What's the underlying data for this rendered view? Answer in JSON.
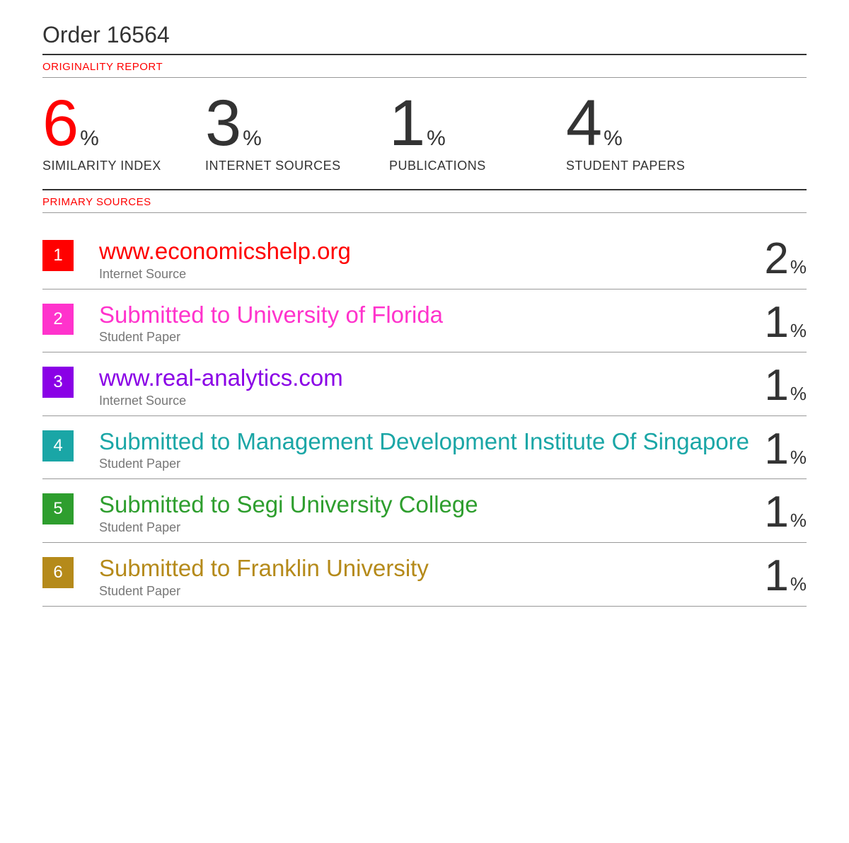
{
  "title": "Order 16564",
  "section_labels": {
    "originality": "ORIGINALITY REPORT",
    "primary_sources": "PRIMARY SOURCES"
  },
  "metrics": [
    {
      "value": "6",
      "unit": "%",
      "label": "SIMILARITY INDEX",
      "highlight": true
    },
    {
      "value": "3",
      "unit": "%",
      "label": "INTERNET SOURCES",
      "highlight": false
    },
    {
      "value": "1",
      "unit": "%",
      "label": "PUBLICATIONS",
      "highlight": false
    },
    {
      "value": "4",
      "unit": "%",
      "label": "STUDENT PAPERS",
      "highlight": false
    }
  ],
  "colors": {
    "accent_red": "#ff0000",
    "text_dark": "#333333",
    "text_muted": "#777777",
    "divider_light": "#999999"
  },
  "sources": [
    {
      "num": "1",
      "title": "www.economicshelp.org",
      "sub": "Internet Source",
      "pct": "2",
      "color": "#ff0000",
      "title_color": "#ff0000"
    },
    {
      "num": "2",
      "title": "Submitted to University of Florida",
      "sub": "Student Paper",
      "pct": "1",
      "color": "#ff33cc",
      "title_color": "#ff33cc"
    },
    {
      "num": "3",
      "title": "www.real-analytics.com",
      "sub": "Internet Source",
      "pct": "1",
      "color": "#8a00e6",
      "title_color": "#8a00e6"
    },
    {
      "num": "4",
      "title": "Submitted to Management Development Institute Of Singapore",
      "sub": "Student Paper",
      "pct": "1",
      "color": "#1aa6a6",
      "title_color": "#1aa6a6"
    },
    {
      "num": "5",
      "title": "Submitted to Segi University College",
      "sub": "Student Paper",
      "pct": "1",
      "color": "#2e9e2e",
      "title_color": "#2e9e2e"
    },
    {
      "num": "6",
      "title": "Submitted to Franklin University",
      "sub": "Student Paper",
      "pct": "1",
      "color": "#b58a1a",
      "title_color": "#b58a1a"
    }
  ]
}
